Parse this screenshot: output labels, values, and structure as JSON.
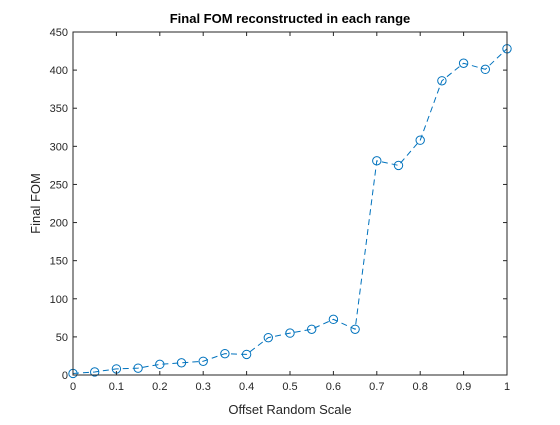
{
  "chart_data": {
    "type": "line",
    "title": "Final FOM reconstructed in each range",
    "xlabel": "Offset Random Scale",
    "ylabel": "Final FOM",
    "xlim": [
      0,
      1
    ],
    "ylim": [
      0,
      450
    ],
    "xticks": [
      0,
      0.1,
      0.2,
      0.3,
      0.4,
      0.5,
      0.6,
      0.7,
      0.8,
      0.9,
      1
    ],
    "xtick_labels": [
      "0",
      "0.1",
      "0.2",
      "0.3",
      "0.4",
      "0.5",
      "0.6",
      "0.7",
      "0.8",
      "0.9",
      "1"
    ],
    "yticks": [
      0,
      50,
      100,
      150,
      200,
      250,
      300,
      350,
      400,
      450
    ],
    "ytick_labels": [
      "0",
      "50",
      "100",
      "150",
      "200",
      "250",
      "300",
      "350",
      "400",
      "450"
    ],
    "grid": false,
    "line_style": "dashed",
    "marker": "circle",
    "color": "#0072BD",
    "series": [
      {
        "x": [
          0,
          0.05,
          0.1,
          0.15,
          0.2,
          0.25,
          0.3,
          0.35,
          0.4,
          0.45,
          0.5,
          0.55,
          0.6,
          0.65,
          0.7,
          0.75,
          0.8,
          0.85,
          0.9,
          0.95,
          1.0
        ],
        "y": [
          2,
          4,
          8,
          9,
          14,
          16,
          18,
          28,
          27,
          49,
          55,
          60,
          73,
          60,
          281,
          275,
          308,
          386,
          409,
          401,
          428
        ]
      }
    ]
  }
}
